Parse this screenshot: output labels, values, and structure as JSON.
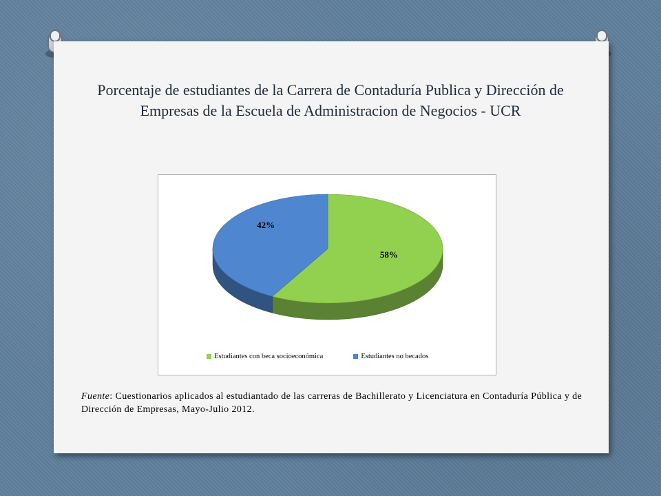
{
  "slide": {
    "title": "Porcentaje de estudiantes de la Carrera de Contaduría Publica y Dirección de Empresas de la Escuela de Administracion de Negocios - UCR",
    "source_lead": "Fuente",
    "source_text": ": Cuestionarios aplicados al estudiantado de las carreras de Bachillerato y Licenciatura en Contaduría Pública y de Dirección de Empresas, Mayo-Julio 2012."
  },
  "chart_data": {
    "type": "pie",
    "style": "3d",
    "title": "",
    "legend_position": "bottom",
    "slices": [
      {
        "name": "Estudiantes con beca socioeconómica",
        "value": 58,
        "label": "58%",
        "color": "#92d050"
      },
      {
        "name": "Estudiantes no becados",
        "value": 42,
        "label": "42%",
        "color": "#4f86d0"
      }
    ]
  }
}
